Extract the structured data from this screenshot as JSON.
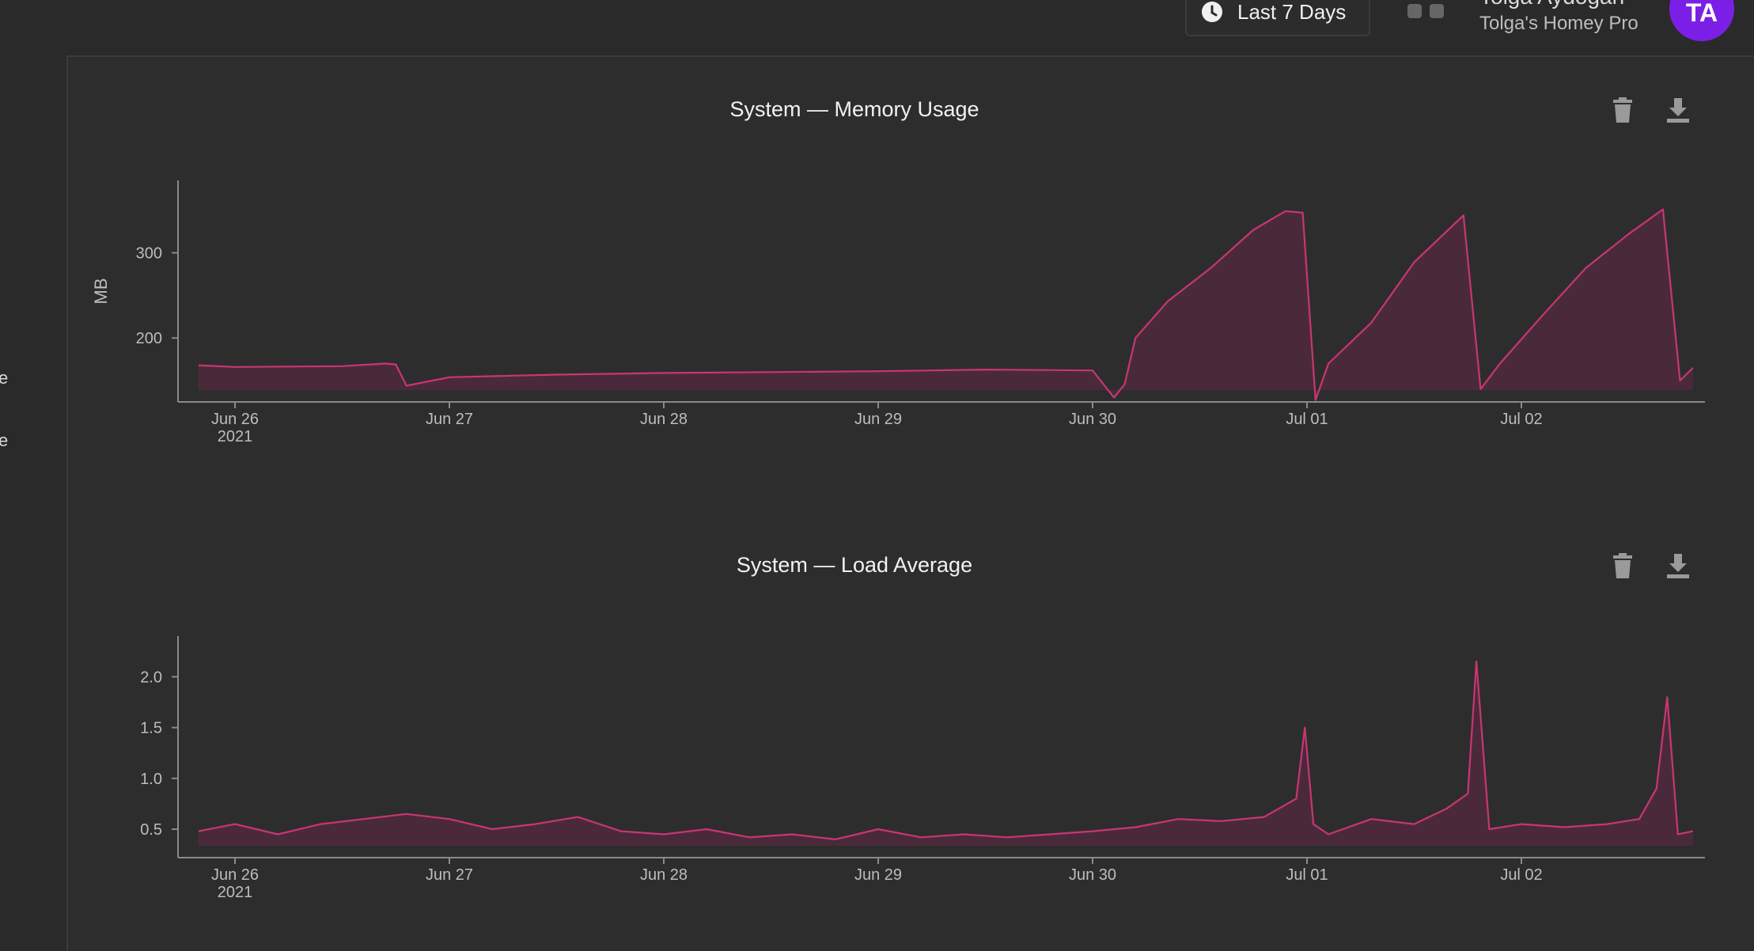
{
  "topbar": {
    "time_range_label": "Last 7 Days",
    "user_name": "Tolga Aydogan",
    "user_home": "Tolga's Homey Pro",
    "avatar_initials": "TA"
  },
  "sidebar_fragments": [
    "e",
    "e"
  ],
  "colors": {
    "series": "#c93573",
    "series_fill": "#4a2a3a",
    "axis": "#8a8a8a",
    "avatar": "#7c1fe6"
  },
  "icons": {
    "time": "clock-icon",
    "apps": "grid-icon",
    "delete": "trash-icon",
    "export": "download-icon"
  },
  "chart_data": [
    {
      "type": "area",
      "title": "System — Memory Usage",
      "xlabel": "",
      "ylabel": "MB",
      "x_ticks": [
        "Jun 26",
        "Jun 27",
        "Jun 28",
        "Jun 29",
        "Jun 30",
        "Jul 01",
        "Jul 02"
      ],
      "x_tick_sublabel": "2021",
      "y_ticks": [
        200,
        300
      ],
      "ylim": [
        125,
        385
      ],
      "grid": false,
      "series": [
        {
          "x": [
            25.83,
            26.0,
            26.5,
            26.7,
            26.75,
            26.8,
            27.0,
            27.5,
            28.0,
            28.5,
            29.0,
            29.5,
            30.0,
            30.1,
            30.15,
            30.2,
            30.35,
            30.55,
            30.75,
            30.9,
            30.98,
            31.04,
            31.1,
            31.3,
            31.5,
            31.73,
            31.81,
            31.9,
            32.1,
            32.3,
            32.5,
            32.66,
            32.74,
            32.8
          ],
          "y": [
            168,
            166,
            167,
            170,
            169,
            144,
            154,
            157,
            159,
            160,
            161,
            163,
            162,
            130,
            146,
            200,
            243,
            282,
            327,
            349,
            347,
            127,
            170,
            218,
            289,
            344,
            140,
            170,
            227,
            282,
            322,
            351,
            150,
            165
          ]
        }
      ]
    },
    {
      "type": "area",
      "title": "System — Load Average",
      "xlabel": "",
      "ylabel": "",
      "x_ticks": [
        "Jun 26",
        "Jun 27",
        "Jun 28",
        "Jun 29",
        "Jun 30",
        "Jul 01",
        "Jul 02"
      ],
      "x_tick_sublabel": "2021",
      "y_ticks": [
        0.5,
        1.0,
        1.5,
        2.0
      ],
      "ylim": [
        0.22,
        2.4
      ],
      "grid": false,
      "series": [
        {
          "x": [
            25.83,
            26.0,
            26.2,
            26.4,
            26.6,
            26.8,
            27.0,
            27.2,
            27.4,
            27.6,
            27.8,
            28.0,
            28.2,
            28.4,
            28.6,
            28.8,
            29.0,
            29.2,
            29.4,
            29.6,
            29.8,
            30.0,
            30.2,
            30.4,
            30.6,
            30.8,
            30.95,
            30.99,
            31.03,
            31.1,
            31.3,
            31.5,
            31.65,
            31.75,
            31.79,
            31.85,
            32.0,
            32.2,
            32.4,
            32.55,
            32.63,
            32.68,
            32.73,
            32.8
          ],
          "y": [
            0.48,
            0.55,
            0.45,
            0.55,
            0.6,
            0.65,
            0.6,
            0.5,
            0.55,
            0.62,
            0.48,
            0.45,
            0.5,
            0.42,
            0.45,
            0.4,
            0.5,
            0.42,
            0.45,
            0.42,
            0.45,
            0.48,
            0.52,
            0.6,
            0.58,
            0.62,
            0.8,
            1.5,
            0.55,
            0.45,
            0.6,
            0.55,
            0.7,
            0.85,
            2.15,
            0.5,
            0.55,
            0.52,
            0.55,
            0.6,
            0.9,
            1.8,
            0.45,
            0.48
          ]
        }
      ]
    }
  ]
}
